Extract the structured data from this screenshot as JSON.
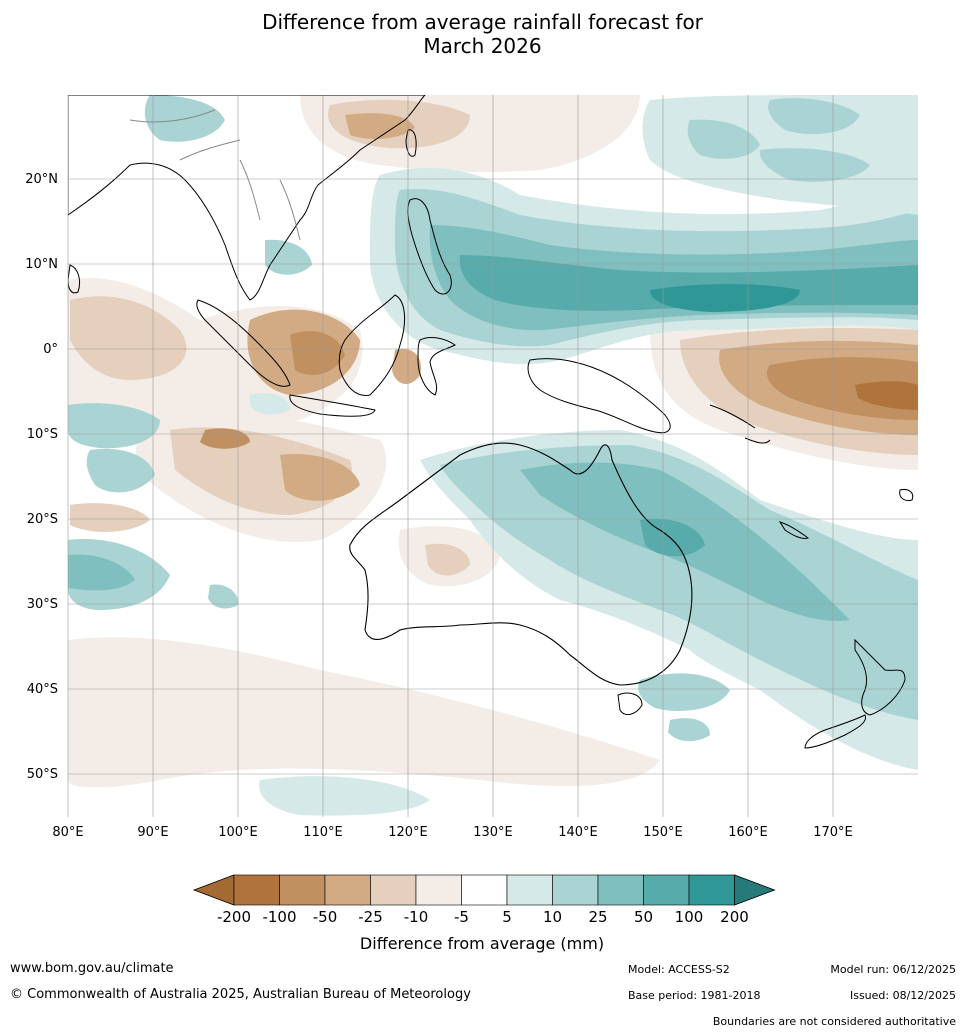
{
  "title": {
    "line1": "Difference from average rainfall forecast for",
    "line2": "March 2026"
  },
  "map": {
    "type": "rainfall-anomaly-map",
    "lon_range": [
      80,
      180
    ],
    "lat_range": [
      -55,
      30
    ],
    "lat_labels": [
      "20°N",
      "10°N",
      "0°",
      "10°S",
      "20°S",
      "30°S",
      "40°S",
      "50°S"
    ],
    "lon_labels": [
      "80°E",
      "90°E",
      "100°E",
      "110°E",
      "120°E",
      "130°E",
      "140°E",
      "150°E",
      "160°E",
      "170°E"
    ],
    "grid": true
  },
  "colorbar": {
    "title": "Difference from average (mm)",
    "tick_labels": [
      "-200",
      "-100",
      "-50",
      "-25",
      "-10",
      "-5",
      "5",
      "10",
      "25",
      "50",
      "100",
      "200"
    ],
    "colors": [
      "#a36b33",
      "#b0733c",
      "#c09060",
      "#d2ab85",
      "#e4d0bd",
      "#f4ece6",
      "#ffffff",
      "#d5e9e8",
      "#a9d4d3",
      "#80bfbf",
      "#57abab",
      "#2f9896",
      "#267b7a"
    ]
  },
  "footer": {
    "website": "www.bom.gov.au/climate",
    "copyright": "© Commonwealth of Australia 2025, Australian Bureau of Meteorology",
    "model": "Model: ACCESS-S2",
    "base_period": "Base period: 1981-2018",
    "model_run": "Model run: 06/12/2025",
    "issued": "Issued: 08/12/2025",
    "disclaimer": "Boundaries are not considered authoritative"
  }
}
